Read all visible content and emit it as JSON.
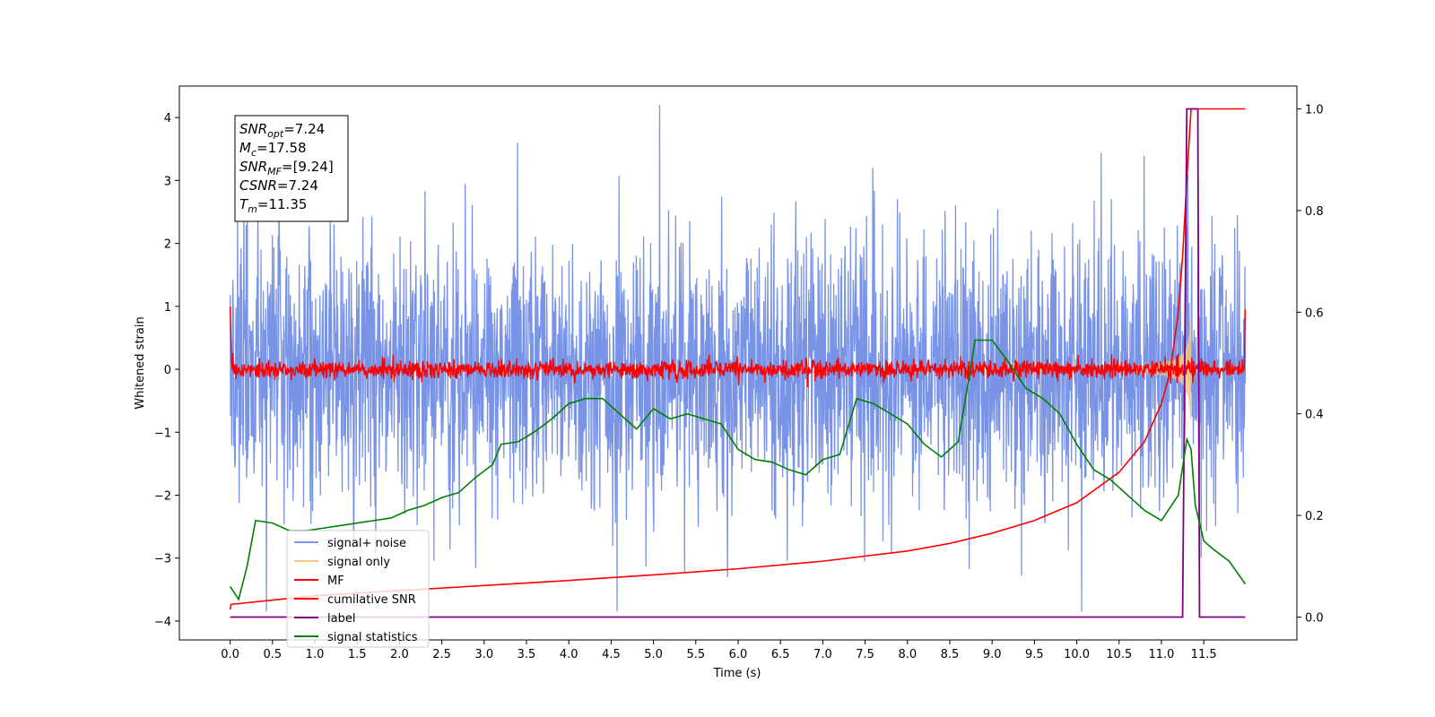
{
  "chart_data": {
    "type": "line",
    "title": "",
    "xlabel": "Time (s)",
    "ylabel": "Whitened strain",
    "xlim": [
      -0.6,
      12.6
    ],
    "ylim": [
      -4.3,
      4.5
    ],
    "y2lim": [
      -0.045,
      1.045
    ],
    "grid": false,
    "legend_position": "lower-left",
    "x_ticks": [
      "0.0",
      "0.5",
      "1.0",
      "1.5",
      "2.0",
      "2.5",
      "3.0",
      "3.5",
      "4.0",
      "4.5",
      "5.0",
      "5.5",
      "6.0",
      "6.5",
      "7.0",
      "7.5",
      "8.0",
      "8.5",
      "9.0",
      "9.5",
      "10.0",
      "10.5",
      "11.0",
      "11.5"
    ],
    "y_ticks": [
      "4",
      "3",
      "2",
      "1",
      "0",
      "−1",
      "−2",
      "−3",
      "−4"
    ],
    "y2_ticks": [
      "1.0",
      "0.8",
      "0.6",
      "0.4",
      "0.2",
      "0.0"
    ],
    "info_box": [
      {
        "main": "SNR",
        "sub": "opt",
        "rest": "=7.24"
      },
      {
        "main": "M",
        "sub": "c",
        "rest": "=17.58"
      },
      {
        "main": "SNR",
        "sub": "MF",
        "rest": "=[9.24]"
      },
      {
        "main": "CSNR",
        "sub": "",
        "rest": "=7.24"
      },
      {
        "main": "T",
        "sub": "m",
        "rest": "=11.35"
      }
    ],
    "legend": [
      {
        "label": "signal+ noise",
        "color": "#7994e6"
      },
      {
        "label": "signal only",
        "color": "#f5c77e"
      },
      {
        "label": "MF",
        "color": "#ff0000"
      },
      {
        "label": "cumilative SNR",
        "color": "#ff0000"
      },
      {
        "label": "label",
        "color": "#800080"
      },
      {
        "label": "signal statistics",
        "color": "#008000"
      }
    ],
    "series": [
      {
        "name": "signal+ noise",
        "axis": "left",
        "color": "#7994e6",
        "description_stats": {
          "x_start": 0.0,
          "x_end": 11.99,
          "typical_amplitude": 2.0,
          "max": 4.2,
          "min": -3.85
        }
      },
      {
        "name": "signal only",
        "axis": "left",
        "color": "#f5c77e",
        "chirp": {
          "t_merger": 11.35,
          "peak_amplitude": 1.0,
          "x_start": 10.7
        }
      },
      {
        "name": "MF",
        "axis": "left",
        "color": "#ff0000",
        "noise_amplitude": 0.12,
        "start_value": 1.0,
        "end_value": 0.95
      },
      {
        "name": "cumilative SNR",
        "axis": "right",
        "color": "#ff0000",
        "x": [
          0.0,
          0.01,
          1.0,
          2.0,
          3.0,
          4.0,
          5.0,
          6.0,
          7.0,
          8.0,
          8.5,
          9.0,
          9.5,
          10.0,
          10.5,
          10.8,
          11.0,
          11.1,
          11.2,
          11.25,
          11.3,
          11.35,
          11.36,
          11.99
        ],
        "y": [
          0.015,
          0.025,
          0.042,
          0.052,
          0.062,
          0.072,
          0.083,
          0.095,
          0.11,
          0.13,
          0.145,
          0.165,
          0.19,
          0.225,
          0.285,
          0.345,
          0.42,
          0.48,
          0.6,
          0.71,
          0.86,
          1.0,
          1.0,
          1.0
        ]
      },
      {
        "name": "label",
        "axis": "right",
        "color": "#800080",
        "x": [
          0.0,
          11.25,
          11.3,
          11.43,
          11.45,
          11.99
        ],
        "y": [
          0.0,
          0.0,
          1.0,
          1.0,
          0.0,
          0.0
        ]
      },
      {
        "name": "signal statistics",
        "axis": "right",
        "color": "#008000",
        "x": [
          0.0,
          0.1,
          0.2,
          0.3,
          0.5,
          0.7,
          0.9,
          1.1,
          1.3,
          1.5,
          1.7,
          1.9,
          2.1,
          2.3,
          2.5,
          2.7,
          2.9,
          3.1,
          3.2,
          3.4,
          3.6,
          3.8,
          4.0,
          4.2,
          4.4,
          4.6,
          4.8,
          5.0,
          5.2,
          5.4,
          5.6,
          5.8,
          6.0,
          6.2,
          6.4,
          6.6,
          6.8,
          7.0,
          7.2,
          7.4,
          7.6,
          7.8,
          8.0,
          8.2,
          8.4,
          8.6,
          8.8,
          9.0,
          9.2,
          9.4,
          9.6,
          9.8,
          10.0,
          10.2,
          10.4,
          10.6,
          10.8,
          11.0,
          11.2,
          11.3,
          11.35,
          11.4,
          11.5,
          11.6,
          11.8,
          11.99
        ],
        "y": [
          0.06,
          0.035,
          0.1,
          0.19,
          0.185,
          0.17,
          0.17,
          0.175,
          0.18,
          0.185,
          0.19,
          0.195,
          0.21,
          0.22,
          0.235,
          0.245,
          0.275,
          0.3,
          0.34,
          0.345,
          0.365,
          0.39,
          0.42,
          0.43,
          0.43,
          0.4,
          0.37,
          0.41,
          0.39,
          0.4,
          0.39,
          0.38,
          0.33,
          0.31,
          0.305,
          0.29,
          0.28,
          0.31,
          0.32,
          0.43,
          0.42,
          0.4,
          0.38,
          0.34,
          0.315,
          0.345,
          0.545,
          0.545,
          0.5,
          0.45,
          0.43,
          0.4,
          0.34,
          0.29,
          0.27,
          0.24,
          0.21,
          0.19,
          0.24,
          0.35,
          0.33,
          0.22,
          0.15,
          0.135,
          0.11,
          0.065
        ]
      }
    ]
  }
}
